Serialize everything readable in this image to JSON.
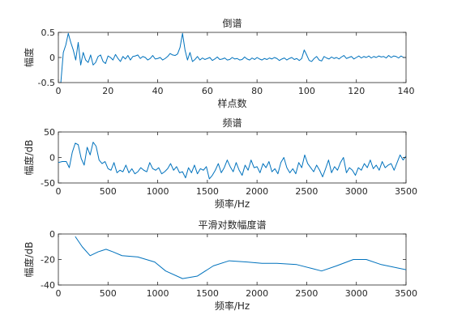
{
  "chart_data": [
    {
      "type": "line",
      "title": "倒谱",
      "xlabel": "样点数",
      "ylabel": "幅度",
      "xlim": [
        0,
        140
      ],
      "ylim": [
        -0.5,
        0.5
      ],
      "xticks": [
        0,
        20,
        40,
        60,
        80,
        100,
        120,
        140
      ],
      "yticks": [
        -0.5,
        0,
        0.5
      ],
      "xtick_labels": [
        "0",
        "20",
        "40",
        "60",
        "80",
        "100",
        "120",
        "140"
      ],
      "ytick_labels": [
        "-0.5",
        "0",
        "0.5"
      ],
      "grid": false,
      "series": [
        {
          "color": "#0072BD",
          "x": [
            1,
            2,
            3,
            4,
            5,
            6,
            7,
            8,
            9,
            10,
            11,
            12,
            13,
            14,
            15,
            16,
            17,
            18,
            19,
            20,
            21,
            22,
            23,
            24,
            25,
            26,
            27,
            28,
            29,
            30,
            31,
            32,
            33,
            34,
            35,
            36,
            37,
            38,
            39,
            40,
            41,
            42,
            43,
            44,
            45,
            46,
            47,
            48,
            49,
            50,
            51,
            52,
            53,
            54,
            55,
            56,
            57,
            58,
            59,
            60,
            61,
            62,
            63,
            64,
            65,
            66,
            67,
            68,
            69,
            70,
            71,
            72,
            73,
            74,
            75,
            76,
            77,
            78,
            79,
            80,
            81,
            82,
            83,
            84,
            85,
            86,
            87,
            88,
            89,
            90,
            91,
            92,
            93,
            94,
            95,
            96,
            97,
            98,
            99,
            100,
            101,
            102,
            103,
            104,
            105,
            106,
            107,
            108,
            109,
            110,
            111,
            112,
            113,
            114,
            115,
            116,
            117,
            118,
            119,
            120,
            121,
            122,
            123,
            124,
            125,
            126,
            127,
            128,
            129,
            130,
            131,
            132,
            133,
            134,
            135,
            136,
            137,
            138,
            139,
            140
          ],
          "y": [
            -0.5,
            0.1,
            0.25,
            0.48,
            0.3,
            0.15,
            -0.05,
            0.3,
            -0.15,
            0.1,
            -0.05,
            -0.1,
            0.05,
            -0.15,
            -0.1,
            0.02,
            0.05,
            -0.08,
            -0.12,
            0.03,
            0.0,
            -0.05,
            0.06,
            -0.02,
            -0.08,
            0.02,
            -0.03,
            0.04,
            -0.05,
            0.02,
            0.03,
            0.05,
            -0.02,
            0.02,
            0.0,
            -0.05,
            -0.02,
            0.04,
            -0.03,
            -0.02,
            0.0,
            -0.05,
            -0.02,
            0.02,
            0.08,
            0.05,
            0.04,
            0.07,
            0.2,
            0.48,
            0.15,
            -0.05,
            0.1,
            -0.08,
            -0.04,
            0.02,
            -0.05,
            -0.01,
            -0.04,
            -0.02,
            0.0,
            -0.06,
            -0.03,
            0.01,
            -0.04,
            -0.03,
            -0.01,
            -0.05,
            -0.04,
            0.0,
            -0.03,
            -0.02,
            -0.05,
            -0.04,
            0.01,
            -0.03,
            -0.05,
            -0.01,
            -0.04,
            0.0,
            -0.03,
            -0.05,
            -0.02,
            -0.04,
            -0.01,
            -0.03,
            0.0,
            -0.02,
            -0.06,
            -0.03,
            -0.01,
            -0.05,
            -0.02,
            0.0,
            -0.04,
            -0.02,
            -0.06,
            -0.02,
            0.15,
            0.05,
            -0.06,
            -0.08,
            -0.02,
            0.02,
            -0.05,
            -0.07,
            0.02,
            -0.01,
            -0.03,
            0.01,
            -0.02,
            0.0,
            -0.03,
            0.01,
            0.04,
            -0.02,
            0.0,
            0.02,
            -0.03,
            0.0,
            0.03,
            -0.01,
            0.02,
            0.0,
            0.03,
            -0.01,
            0.02,
            0.0,
            0.03,
            0.01,
            0.02,
            -0.01,
            0.04,
            0.0,
            0.03,
            0.02,
            -0.01,
            0.03,
            0.0,
            0.0
          ]
        }
      ]
    },
    {
      "type": "line",
      "title": "频谱",
      "xlabel": "频率/Hz",
      "ylabel": "幅度/dB",
      "xlim": [
        0,
        3500
      ],
      "ylim": [
        -50,
        50
      ],
      "xticks": [
        0,
        500,
        1000,
        1500,
        2000,
        2500,
        3000,
        3500
      ],
      "yticks": [
        -50,
        0,
        50
      ],
      "xtick_labels": [
        "0",
        "500",
        "1000",
        "1500",
        "2000",
        "2500",
        "3000",
        "3500"
      ],
      "ytick_labels": [
        "-50",
        "0",
        "50"
      ],
      "grid": false,
      "series": [
        {
          "color": "#0072BD",
          "x": [
            0,
            40,
            80,
            110,
            140,
            170,
            200,
            230,
            260,
            290,
            320,
            350,
            380,
            410,
            440,
            470,
            500,
            530,
            560,
            590,
            620,
            650,
            680,
            710,
            740,
            770,
            800,
            830,
            860,
            890,
            920,
            950,
            980,
            1010,
            1040,
            1070,
            1100,
            1130,
            1160,
            1190,
            1220,
            1250,
            1280,
            1310,
            1340,
            1370,
            1400,
            1430,
            1460,
            1490,
            1520,
            1550,
            1580,
            1610,
            1640,
            1670,
            1700,
            1730,
            1760,
            1790,
            1820,
            1850,
            1880,
            1910,
            1940,
            1970,
            2000,
            2030,
            2060,
            2090,
            2120,
            2150,
            2180,
            2210,
            2240,
            2270,
            2300,
            2330,
            2360,
            2390,
            2420,
            2450,
            2480,
            2510,
            2540,
            2570,
            2600,
            2630,
            2660,
            2690,
            2720,
            2750,
            2780,
            2810,
            2840,
            2870,
            2900,
            2930,
            2960,
            2990,
            3020,
            3050,
            3080,
            3110,
            3140,
            3170,
            3200,
            3230,
            3260,
            3290,
            3320,
            3350,
            3380,
            3410,
            3440,
            3470,
            3500
          ],
          "y": [
            -10,
            -8,
            -8,
            -20,
            10,
            28,
            25,
            -2,
            -15,
            20,
            5,
            30,
            22,
            -5,
            -12,
            -8,
            -22,
            -25,
            -10,
            -30,
            -25,
            -28,
            -15,
            -30,
            -22,
            -32,
            -28,
            -20,
            -25,
            -28,
            -10,
            -22,
            -25,
            -20,
            -32,
            -28,
            -22,
            -12,
            -25,
            -18,
            -30,
            -28,
            -40,
            -20,
            -30,
            -15,
            -32,
            -22,
            -25,
            -18,
            -42,
            -35,
            -25,
            -12,
            -30,
            -20,
            -5,
            -18,
            -28,
            -10,
            -25,
            -35,
            -15,
            -25,
            -5,
            -20,
            -18,
            -30,
            -12,
            -20,
            -8,
            -28,
            -22,
            -32,
            -10,
            0,
            -20,
            -30,
            -22,
            -32,
            -10,
            -20,
            5,
            -12,
            -20,
            -28,
            -15,
            -25,
            -38,
            -22,
            -5,
            -30,
            -18,
            -25,
            -10,
            0,
            -30,
            -20,
            -25,
            -35,
            -20,
            -25,
            -12,
            -20,
            -5,
            -22,
            -15,
            -25,
            -8,
            -20,
            -15,
            -12,
            -25,
            -10,
            5,
            -5,
            3
          ]
        }
      ]
    },
    {
      "type": "line",
      "title": "平滑对数幅度谱",
      "xlabel": "频率/Hz",
      "ylabel": "幅度/dB",
      "xlim": [
        0,
        3500
      ],
      "ylim": [
        -40,
        0
      ],
      "xticks": [
        0,
        500,
        1000,
        1500,
        2000,
        2500,
        3000,
        3500
      ],
      "yticks": [
        -40,
        -20,
        0
      ],
      "xtick_labels": [
        "0",
        "500",
        "1000",
        "1500",
        "2000",
        "2500",
        "3000",
        "3500"
      ],
      "ytick_labels": [
        "-40",
        "-20",
        "0"
      ],
      "grid": false,
      "series": [
        {
          "color": "#0072BD",
          "x": [
            170,
            240,
            320,
            400,
            480,
            550,
            640,
            800,
            970,
            1080,
            1250,
            1400,
            1560,
            1720,
            1900,
            2050,
            2200,
            2400,
            2550,
            2650,
            2800,
            2970,
            3100,
            3250,
            3500
          ],
          "y": [
            -2,
            -10,
            -17,
            -14,
            -12,
            -14,
            -17,
            -18,
            -22,
            -29,
            -35,
            -33,
            -25,
            -21,
            -22,
            -23,
            -23,
            -24,
            -27,
            -29,
            -25,
            -20,
            -20,
            -24,
            -28
          ]
        }
      ]
    }
  ]
}
